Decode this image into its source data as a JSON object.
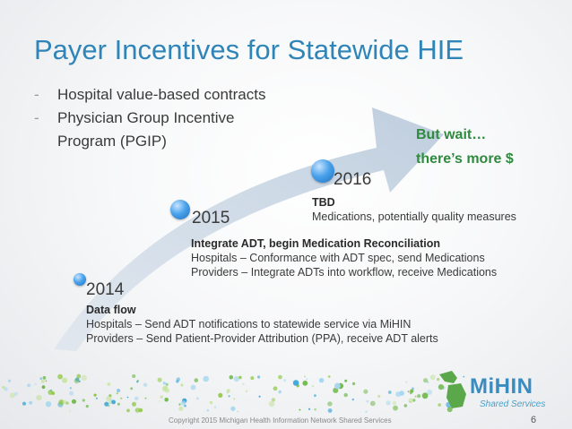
{
  "title": "Payer Incentives for Statewide HIE",
  "bullets": {
    "item1": "Hospital value-based contracts",
    "item2_line1": "Physician Group Incentive",
    "item2_line2": "Program (PGIP)"
  },
  "callout": {
    "line1": "But wait…",
    "line2": "there’s more $"
  },
  "timeline": {
    "y2014": {
      "year": "2014",
      "heading": "Data flow",
      "line1": "Hospitals – Send ADT notifications to statewide service via MiHIN",
      "line2": "Providers – Send Patient-Provider Attribution (PPA), receive ADT alerts"
    },
    "y2015": {
      "year": "2015",
      "heading": "Integrate ADT, begin Medication Reconciliation",
      "line1": "Hospitals – Conformance with ADT spec, send Medications",
      "line2": "Providers – Integrate ADTs into workflow, receive Medications"
    },
    "y2016": {
      "year": "2016",
      "heading": "TBD",
      "line1": "Medications, potentially quality measures"
    }
  },
  "logo": {
    "name": "MiHIN",
    "tagline": "Shared Services"
  },
  "footer": {
    "copyright": "Copyright 2015 Michigan Health Information Network Shared Services",
    "page": "6"
  },
  "colors": {
    "title": "#2f84b8",
    "callout": "#2e8b3e",
    "dot": "#2b86d6"
  }
}
